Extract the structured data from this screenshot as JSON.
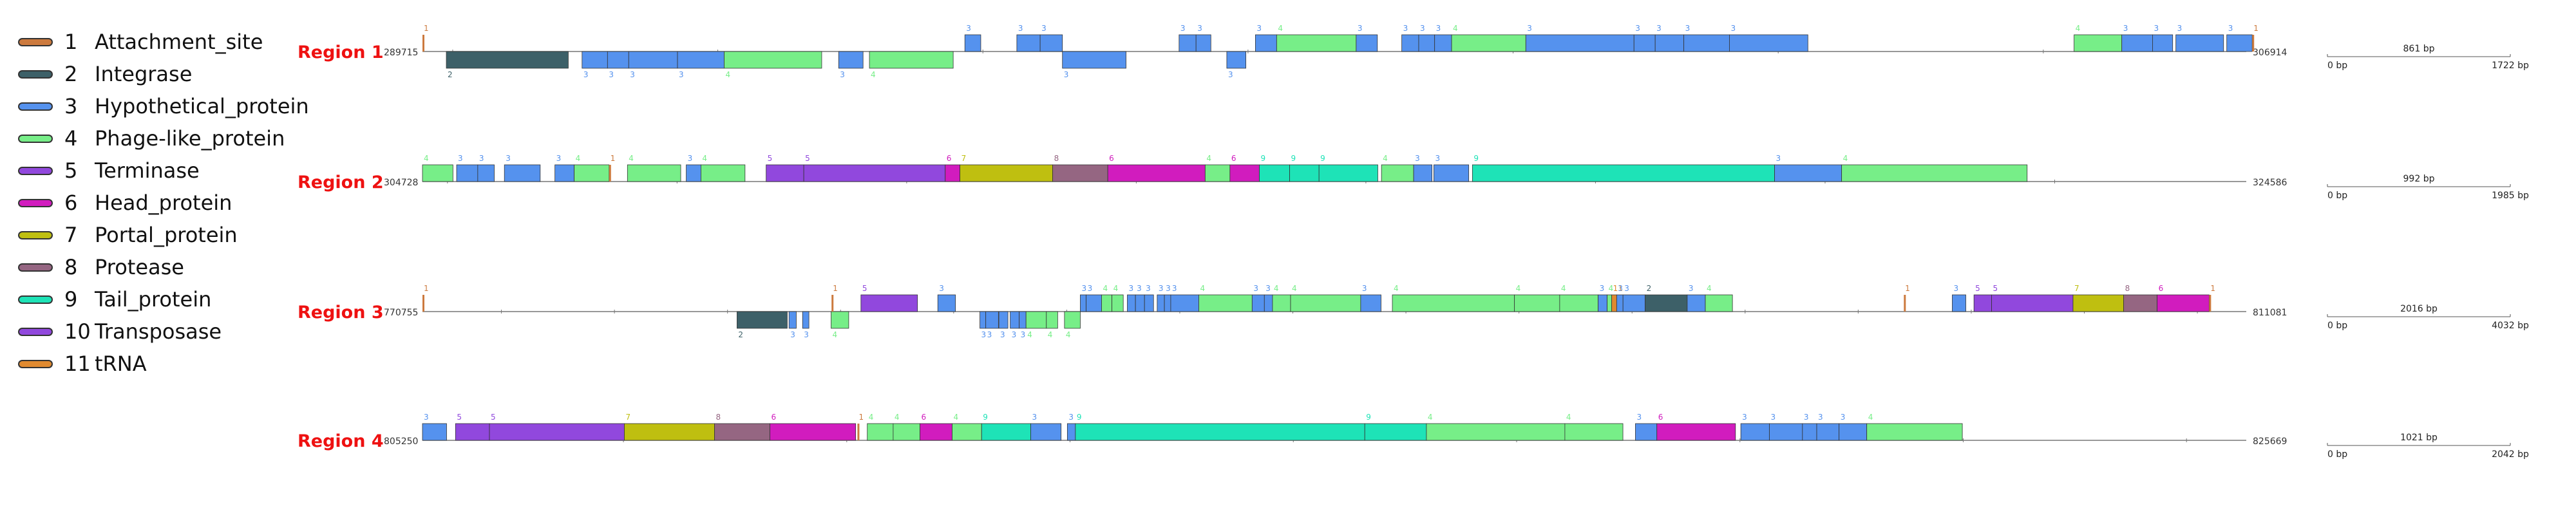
{
  "legend": [
    {
      "id": 1,
      "label": "Attachment_site",
      "color": "#cc7a3e"
    },
    {
      "id": 2,
      "label": "Integrase",
      "color": "#3d6068"
    },
    {
      "id": 3,
      "label": "Hypothetical_protein",
      "color": "#5592ee"
    },
    {
      "id": 4,
      "label": "Phage-like_protein",
      "color": "#77ee88"
    },
    {
      "id": 5,
      "label": "Terminase",
      "color": "#9148dd"
    },
    {
      "id": 6,
      "label": "Head_protein",
      "color": "#d11cbe"
    },
    {
      "id": 7,
      "label": "Portal_protein",
      "color": "#bfbf10"
    },
    {
      "id": 8,
      "label": "Protease",
      "color": "#956682"
    },
    {
      "id": 9,
      "label": "Tail_protein",
      "color": "#1ee3b7"
    },
    {
      "id": 10,
      "label": "Transposase",
      "color": "#9148dd"
    },
    {
      "id": 11,
      "label": "tRNA",
      "color": "#e08a30"
    }
  ],
  "regions": [
    {
      "label": "Region 1",
      "start_label": "289715",
      "end_label": "306914",
      "start": 289715,
      "end": 306914,
      "scale": {
        "length_label": "861 bp",
        "min_label": "0 bp",
        "max_label": "1722 bp"
      },
      "genes": [
        {
          "start": 289715,
          "end": 289740,
          "type": 1,
          "strand": 1
        },
        {
          "start": 289940,
          "end": 291090,
          "type": 2,
          "strand": -1
        },
        {
          "start": 291220,
          "end": 291460,
          "type": 3,
          "strand": -1
        },
        {
          "start": 291460,
          "end": 291660,
          "type": 3,
          "strand": -1
        },
        {
          "start": 291660,
          "end": 292120,
          "type": 3,
          "strand": -1
        },
        {
          "start": 292120,
          "end": 292560,
          "type": 3,
          "strand": -1
        },
        {
          "start": 292560,
          "end": 293480,
          "type": 4,
          "strand": -1
        },
        {
          "start": 293640,
          "end": 293870,
          "type": 3,
          "strand": -1
        },
        {
          "start": 293930,
          "end": 294720,
          "type": 4,
          "strand": -1
        },
        {
          "start": 294830,
          "end": 294980,
          "type": 3,
          "strand": 1
        },
        {
          "start": 295320,
          "end": 295540,
          "type": 3,
          "strand": 1
        },
        {
          "start": 295540,
          "end": 295750,
          "type": 3,
          "strand": 1
        },
        {
          "start": 295750,
          "end": 296350,
          "type": 3,
          "strand": -1
        },
        {
          "start": 296850,
          "end": 297010,
          "type": 3,
          "strand": 1
        },
        {
          "start": 297010,
          "end": 297150,
          "type": 3,
          "strand": 1
        },
        {
          "start": 297300,
          "end": 297480,
          "type": 3,
          "strand": -1
        },
        {
          "start": 297570,
          "end": 297770,
          "type": 3,
          "strand": 1
        },
        {
          "start": 297770,
          "end": 298520,
          "type": 4,
          "strand": 1
        },
        {
          "start": 298520,
          "end": 298720,
          "type": 3,
          "strand": 1
        },
        {
          "start": 298950,
          "end": 299110,
          "type": 3,
          "strand": 1
        },
        {
          "start": 299110,
          "end": 299260,
          "type": 3,
          "strand": 1
        },
        {
          "start": 299260,
          "end": 299420,
          "type": 3,
          "strand": 1
        },
        {
          "start": 299420,
          "end": 300120,
          "type": 4,
          "strand": 1
        },
        {
          "start": 300120,
          "end": 301140,
          "type": 3,
          "strand": 1
        },
        {
          "start": 301140,
          "end": 301340,
          "type": 3,
          "strand": 1
        },
        {
          "start": 301340,
          "end": 301610,
          "type": 3,
          "strand": 1
        },
        {
          "start": 301610,
          "end": 302040,
          "type": 3,
          "strand": 1
        },
        {
          "start": 302040,
          "end": 302780,
          "type": 3,
          "strand": 1
        },
        {
          "start": 305290,
          "end": 305740,
          "type": 4,
          "strand": 1
        },
        {
          "start": 305740,
          "end": 306030,
          "type": 3,
          "strand": 1
        },
        {
          "start": 306030,
          "end": 306220,
          "type": 3,
          "strand": 1
        },
        {
          "start": 306250,
          "end": 306700,
          "type": 3,
          "strand": 1
        },
        {
          "start": 306730,
          "end": 306970,
          "type": 3,
          "strand": 1
        },
        {
          "start": 306970,
          "end": 306997,
          "type": 1,
          "strand": 1
        }
      ]
    },
    {
      "label": "Region 2",
      "start_label": "304728",
      "end_label": "324586",
      "start": 304728,
      "end": 324586,
      "scale": {
        "length_label": "992 bp",
        "min_label": "0 bp",
        "max_label": "1985 bp"
      },
      "genes": [
        {
          "start": 304728,
          "end": 305060,
          "type": 4,
          "strand": 1
        },
        {
          "start": 305100,
          "end": 305330,
          "type": 3,
          "strand": 1
        },
        {
          "start": 305330,
          "end": 305510,
          "type": 3,
          "strand": 1
        },
        {
          "start": 305620,
          "end": 306010,
          "type": 3,
          "strand": 1
        },
        {
          "start": 306170,
          "end": 306380,
          "type": 3,
          "strand": 1
        },
        {
          "start": 306380,
          "end": 306760,
          "type": 4,
          "strand": 1
        },
        {
          "start": 306760,
          "end": 306790,
          "type": 1,
          "strand": 1
        },
        {
          "start": 306960,
          "end": 307540,
          "type": 4,
          "strand": 1
        },
        {
          "start": 307600,
          "end": 307760,
          "type": 3,
          "strand": 1
        },
        {
          "start": 307760,
          "end": 308240,
          "type": 4,
          "strand": 1
        },
        {
          "start": 308470,
          "end": 308880,
          "type": 5,
          "strand": 1
        },
        {
          "start": 308880,
          "end": 310420,
          "type": 5,
          "strand": 1
        },
        {
          "start": 310420,
          "end": 310580,
          "type": 6,
          "strand": 1
        },
        {
          "start": 310580,
          "end": 311590,
          "type": 7,
          "strand": 1
        },
        {
          "start": 311590,
          "end": 312190,
          "type": 8,
          "strand": 1
        },
        {
          "start": 312190,
          "end": 313250,
          "type": 6,
          "strand": 1
        },
        {
          "start": 313250,
          "end": 313520,
          "type": 4,
          "strand": 1
        },
        {
          "start": 313520,
          "end": 313840,
          "type": 6,
          "strand": 1
        },
        {
          "start": 313840,
          "end": 314170,
          "type": 9,
          "strand": 1
        },
        {
          "start": 314170,
          "end": 314490,
          "type": 9,
          "strand": 1
        },
        {
          "start": 314490,
          "end": 315130,
          "type": 9,
          "strand": 1
        },
        {
          "start": 315170,
          "end": 315520,
          "type": 4,
          "strand": 1
        },
        {
          "start": 315520,
          "end": 315720,
          "type": 3,
          "strand": 1
        },
        {
          "start": 315740,
          "end": 316120,
          "type": 3,
          "strand": 1
        },
        {
          "start": 316160,
          "end": 319450,
          "type": 9,
          "strand": 1
        },
        {
          "start": 319450,
          "end": 320180,
          "type": 3,
          "strand": 1
        },
        {
          "start": 320180,
          "end": 322200,
          "type": 4,
          "strand": 1
        }
      ]
    },
    {
      "label": "Region 3",
      "start_label": "770755",
      "end_label": "811081",
      "start": 770755,
      "end": 811081,
      "scale": {
        "length_label": "2016 bp",
        "min_label": "0 bp",
        "max_label": "4032 bp"
      },
      "genes": [
        {
          "start": 770755,
          "end": 770790,
          "type": 1,
          "strand": 1
        },
        {
          "start": 777710,
          "end": 778820,
          "type": 2,
          "strand": -1
        },
        {
          "start": 778860,
          "end": 779020,
          "type": 3,
          "strand": -1
        },
        {
          "start": 779160,
          "end": 779300,
          "type": 3,
          "strand": -1
        },
        {
          "start": 779790,
          "end": 780180,
          "type": 4,
          "strand": -1
        },
        {
          "start": 779800,
          "end": 779830,
          "type": 1,
          "strand": 1
        },
        {
          "start": 780450,
          "end": 781700,
          "type": 5,
          "strand": 1
        },
        {
          "start": 782150,
          "end": 782540,
          "type": 3,
          "strand": 1
        },
        {
          "start": 783080,
          "end": 783210,
          "type": 3,
          "strand": -1
        },
        {
          "start": 783210,
          "end": 783490,
          "type": 3,
          "strand": -1
        },
        {
          "start": 783500,
          "end": 783700,
          "type": 3,
          "strand": -1
        },
        {
          "start": 783750,
          "end": 783950,
          "type": 3,
          "strand": -1
        },
        {
          "start": 783950,
          "end": 784100,
          "type": 3,
          "strand": -1
        },
        {
          "start": 784100,
          "end": 784550,
          "type": 4,
          "strand": -1
        },
        {
          "start": 784550,
          "end": 784800,
          "type": 4,
          "strand": -1
        },
        {
          "start": 784950,
          "end": 785300,
          "type": 4,
          "strand": -1
        },
        {
          "start": 785300,
          "end": 785430,
          "type": 3,
          "strand": 1
        },
        {
          "start": 785430,
          "end": 785770,
          "type": 3,
          "strand": 1
        },
        {
          "start": 785770,
          "end": 786000,
          "type": 4,
          "strand": 1
        },
        {
          "start": 786000,
          "end": 786250,
          "type": 4,
          "strand": 1
        },
        {
          "start": 786340,
          "end": 786520,
          "type": 3,
          "strand": 1
        },
        {
          "start": 786520,
          "end": 786720,
          "type": 3,
          "strand": 1
        },
        {
          "start": 786720,
          "end": 786920,
          "type": 3,
          "strand": 1
        },
        {
          "start": 787000,
          "end": 787160,
          "type": 3,
          "strand": 1
        },
        {
          "start": 787160,
          "end": 787300,
          "type": 3,
          "strand": 1
        },
        {
          "start": 787300,
          "end": 787920,
          "type": 3,
          "strand": 1
        },
        {
          "start": 787920,
          "end": 789100,
          "type": 4,
          "strand": 1
        },
        {
          "start": 789100,
          "end": 789370,
          "type": 3,
          "strand": 1
        },
        {
          "start": 789370,
          "end": 789550,
          "type": 3,
          "strand": 1
        },
        {
          "start": 789550,
          "end": 789950,
          "type": 4,
          "strand": 1
        },
        {
          "start": 789950,
          "end": 791500,
          "type": 4,
          "strand": 1
        },
        {
          "start": 791500,
          "end": 791950,
          "type": 3,
          "strand": 1
        },
        {
          "start": 792200,
          "end": 794900,
          "type": 4,
          "strand": 1
        },
        {
          "start": 794900,
          "end": 795900,
          "type": 4,
          "strand": 1
        },
        {
          "start": 795900,
          "end": 796750,
          "type": 4,
          "strand": 1
        },
        {
          "start": 796750,
          "end": 796950,
          "type": 3,
          "strand": 1
        },
        {
          "start": 796950,
          "end": 797050,
          "type": 4,
          "strand": 1
        },
        {
          "start": 797050,
          "end": 797160,
          "type": 11,
          "strand": 1
        },
        {
          "start": 797160,
          "end": 797300,
          "type": 3,
          "strand": 1
        },
        {
          "start": 797300,
          "end": 797790,
          "type": 3,
          "strand": 1
        },
        {
          "start": 797790,
          "end": 798720,
          "type": 2,
          "strand": 1
        },
        {
          "start": 798720,
          "end": 799120,
          "type": 3,
          "strand": 1
        },
        {
          "start": 799120,
          "end": 799720,
          "type": 4,
          "strand": 1
        },
        {
          "start": 803510,
          "end": 803540,
          "type": 1,
          "strand": 1
        },
        {
          "start": 804580,
          "end": 804880,
          "type": 3,
          "strand": 1
        },
        {
          "start": 805060,
          "end": 805450,
          "type": 5,
          "strand": 1
        },
        {
          "start": 805450,
          "end": 807250,
          "type": 5,
          "strand": 1
        },
        {
          "start": 807250,
          "end": 808370,
          "type": 7,
          "strand": 1
        },
        {
          "start": 808370,
          "end": 809110,
          "type": 8,
          "strand": 1
        },
        {
          "start": 809110,
          "end": 810260,
          "type": 6,
          "strand": 1
        },
        {
          "start": 810260,
          "end": 810290,
          "type": 1,
          "strand": 1
        }
      ]
    },
    {
      "label": "Region 4",
      "start_label": "805250",
      "end_label": "825669",
      "start": 805250,
      "end": 825669,
      "scale": {
        "length_label": "1021 bp",
        "min_label": "0 bp",
        "max_label": "2042 bp"
      },
      "genes": [
        {
          "start": 805250,
          "end": 805520,
          "type": 3,
          "strand": 1
        },
        {
          "start": 805620,
          "end": 806000,
          "type": 5,
          "strand": 1
        },
        {
          "start": 806000,
          "end": 807510,
          "type": 5,
          "strand": 1
        },
        {
          "start": 807510,
          "end": 808520,
          "type": 7,
          "strand": 1
        },
        {
          "start": 808520,
          "end": 809140,
          "type": 8,
          "strand": 1
        },
        {
          "start": 809140,
          "end": 810100,
          "type": 6,
          "strand": 1
        },
        {
          "start": 810120,
          "end": 810150,
          "type": 1,
          "strand": 1
        },
        {
          "start": 810230,
          "end": 810520,
          "type": 4,
          "strand": 1
        },
        {
          "start": 810520,
          "end": 810820,
          "type": 4,
          "strand": 1
        },
        {
          "start": 810820,
          "end": 811180,
          "type": 6,
          "strand": 1
        },
        {
          "start": 811180,
          "end": 811510,
          "type": 4,
          "strand": 1
        },
        {
          "start": 811510,
          "end": 812060,
          "type": 9,
          "strand": 1
        },
        {
          "start": 812060,
          "end": 812400,
          "type": 3,
          "strand": 1
        },
        {
          "start": 812470,
          "end": 812560,
          "type": 3,
          "strand": 1
        },
        {
          "start": 812560,
          "end": 815800,
          "type": 9,
          "strand": 1
        },
        {
          "start": 815800,
          "end": 816490,
          "type": 9,
          "strand": 1
        },
        {
          "start": 816490,
          "end": 818040,
          "type": 4,
          "strand": 1
        },
        {
          "start": 818040,
          "end": 818690,
          "type": 4,
          "strand": 1
        },
        {
          "start": 818830,
          "end": 819070,
          "type": 3,
          "strand": 1
        },
        {
          "start": 819070,
          "end": 819950,
          "type": 6,
          "strand": 1
        },
        {
          "start": 820010,
          "end": 820330,
          "type": 3,
          "strand": 1
        },
        {
          "start": 820330,
          "end": 820700,
          "type": 3,
          "strand": 1
        },
        {
          "start": 820700,
          "end": 820860,
          "type": 3,
          "strand": 1
        },
        {
          "start": 820860,
          "end": 821110,
          "type": 3,
          "strand": 1
        },
        {
          "start": 821110,
          "end": 821420,
          "type": 3,
          "strand": 1
        },
        {
          "start": 821420,
          "end": 822490,
          "type": 4,
          "strand": 1
        }
      ]
    }
  ]
}
